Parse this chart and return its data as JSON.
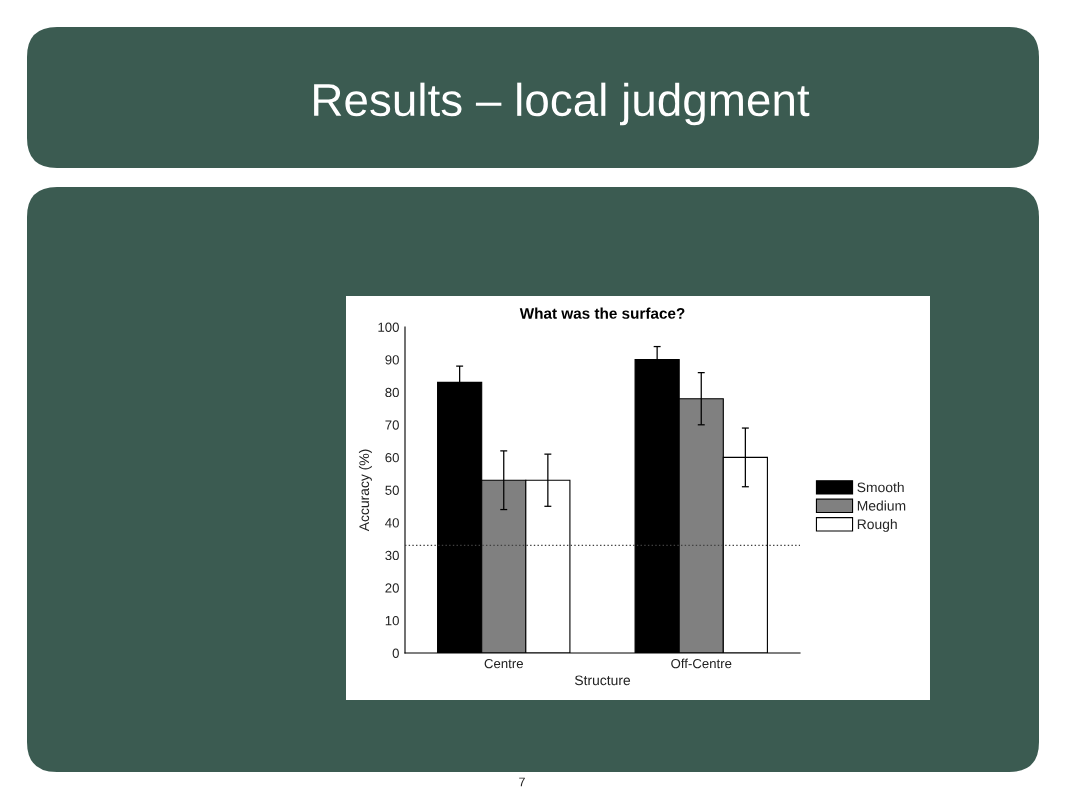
{
  "chart_data": {
    "type": "bar",
    "title": "What was the surface?",
    "xlabel": "Structure",
    "ylabel": "Accuracy (%)",
    "categories": [
      "Centre",
      "Off-Centre"
    ],
    "series": [
      {
        "name": "Smooth",
        "color": "#000000",
        "values": [
          83,
          90
        ],
        "errors": [
          5,
          4
        ]
      },
      {
        "name": "Medium",
        "color": "#808080",
        "values": [
          53,
          78
        ],
        "errors": [
          9,
          8
        ]
      },
      {
        "name": "Rough",
        "color": "#ffffff",
        "values": [
          53,
          60
        ],
        "errors": [
          8,
          9
        ]
      }
    ],
    "ylim": [
      0,
      100
    ],
    "yticks": [
      0,
      10,
      20,
      30,
      40,
      50,
      60,
      70,
      80,
      90,
      100
    ],
    "ref_lines": [
      {
        "axis": "y",
        "value": 33,
        "color": "#404040",
        "line_style": "dotted"
      }
    ],
    "legend": "right",
    "annotations": [
      "Results – local judgment",
      "7"
    ]
  }
}
